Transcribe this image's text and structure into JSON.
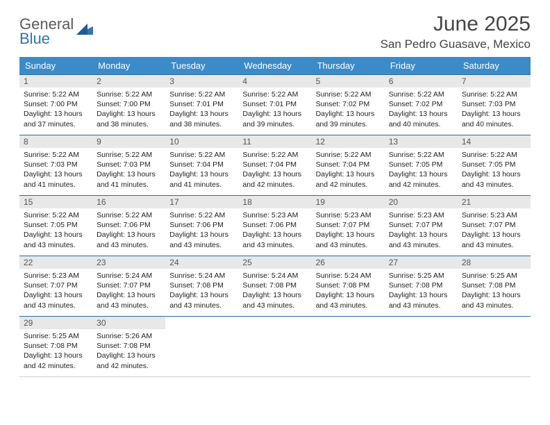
{
  "brand": {
    "line1": "General",
    "line2": "Blue"
  },
  "colors": {
    "header_bg": "#3b8bc9",
    "header_text": "#ffffff",
    "row_border": "#2c6aa0",
    "daynum_bg": "#e8e8e8",
    "logo_gray": "#5b5b5b",
    "logo_blue": "#2f74b5"
  },
  "title": "June 2025",
  "location": "San Pedro Guasave, Mexico",
  "weekdays": [
    "Sunday",
    "Monday",
    "Tuesday",
    "Wednesday",
    "Thursday",
    "Friday",
    "Saturday"
  ],
  "layout": {
    "rows": 5,
    "cols": 7,
    "first_weekday_index": 0,
    "days_in_month": 30
  },
  "days": [
    {
      "n": 1,
      "sunrise": "5:22 AM",
      "sunset": "7:00 PM",
      "daylight": "13 hours and 37 minutes."
    },
    {
      "n": 2,
      "sunrise": "5:22 AM",
      "sunset": "7:00 PM",
      "daylight": "13 hours and 38 minutes."
    },
    {
      "n": 3,
      "sunrise": "5:22 AM",
      "sunset": "7:01 PM",
      "daylight": "13 hours and 38 minutes."
    },
    {
      "n": 4,
      "sunrise": "5:22 AM",
      "sunset": "7:01 PM",
      "daylight": "13 hours and 39 minutes."
    },
    {
      "n": 5,
      "sunrise": "5:22 AM",
      "sunset": "7:02 PM",
      "daylight": "13 hours and 39 minutes."
    },
    {
      "n": 6,
      "sunrise": "5:22 AM",
      "sunset": "7:02 PM",
      "daylight": "13 hours and 40 minutes."
    },
    {
      "n": 7,
      "sunrise": "5:22 AM",
      "sunset": "7:03 PM",
      "daylight": "13 hours and 40 minutes."
    },
    {
      "n": 8,
      "sunrise": "5:22 AM",
      "sunset": "7:03 PM",
      "daylight": "13 hours and 41 minutes."
    },
    {
      "n": 9,
      "sunrise": "5:22 AM",
      "sunset": "7:03 PM",
      "daylight": "13 hours and 41 minutes."
    },
    {
      "n": 10,
      "sunrise": "5:22 AM",
      "sunset": "7:04 PM",
      "daylight": "13 hours and 41 minutes."
    },
    {
      "n": 11,
      "sunrise": "5:22 AM",
      "sunset": "7:04 PM",
      "daylight": "13 hours and 42 minutes."
    },
    {
      "n": 12,
      "sunrise": "5:22 AM",
      "sunset": "7:04 PM",
      "daylight": "13 hours and 42 minutes."
    },
    {
      "n": 13,
      "sunrise": "5:22 AM",
      "sunset": "7:05 PM",
      "daylight": "13 hours and 42 minutes."
    },
    {
      "n": 14,
      "sunrise": "5:22 AM",
      "sunset": "7:05 PM",
      "daylight": "13 hours and 43 minutes."
    },
    {
      "n": 15,
      "sunrise": "5:22 AM",
      "sunset": "7:05 PM",
      "daylight": "13 hours and 43 minutes."
    },
    {
      "n": 16,
      "sunrise": "5:22 AM",
      "sunset": "7:06 PM",
      "daylight": "13 hours and 43 minutes."
    },
    {
      "n": 17,
      "sunrise": "5:22 AM",
      "sunset": "7:06 PM",
      "daylight": "13 hours and 43 minutes."
    },
    {
      "n": 18,
      "sunrise": "5:23 AM",
      "sunset": "7:06 PM",
      "daylight": "13 hours and 43 minutes."
    },
    {
      "n": 19,
      "sunrise": "5:23 AM",
      "sunset": "7:07 PM",
      "daylight": "13 hours and 43 minutes."
    },
    {
      "n": 20,
      "sunrise": "5:23 AM",
      "sunset": "7:07 PM",
      "daylight": "13 hours and 43 minutes."
    },
    {
      "n": 21,
      "sunrise": "5:23 AM",
      "sunset": "7:07 PM",
      "daylight": "13 hours and 43 minutes."
    },
    {
      "n": 22,
      "sunrise": "5:23 AM",
      "sunset": "7:07 PM",
      "daylight": "13 hours and 43 minutes."
    },
    {
      "n": 23,
      "sunrise": "5:24 AM",
      "sunset": "7:07 PM",
      "daylight": "13 hours and 43 minutes."
    },
    {
      "n": 24,
      "sunrise": "5:24 AM",
      "sunset": "7:08 PM",
      "daylight": "13 hours and 43 minutes."
    },
    {
      "n": 25,
      "sunrise": "5:24 AM",
      "sunset": "7:08 PM",
      "daylight": "13 hours and 43 minutes."
    },
    {
      "n": 26,
      "sunrise": "5:24 AM",
      "sunset": "7:08 PM",
      "daylight": "13 hours and 43 minutes."
    },
    {
      "n": 27,
      "sunrise": "5:25 AM",
      "sunset": "7:08 PM",
      "daylight": "13 hours and 43 minutes."
    },
    {
      "n": 28,
      "sunrise": "5:25 AM",
      "sunset": "7:08 PM",
      "daylight": "13 hours and 43 minutes."
    },
    {
      "n": 29,
      "sunrise": "5:25 AM",
      "sunset": "7:08 PM",
      "daylight": "13 hours and 42 minutes."
    },
    {
      "n": 30,
      "sunrise": "5:26 AM",
      "sunset": "7:08 PM",
      "daylight": "13 hours and 42 minutes."
    }
  ],
  "labels": {
    "sunrise_prefix": "Sunrise: ",
    "sunset_prefix": "Sunset: ",
    "daylight_prefix": "Daylight: "
  }
}
